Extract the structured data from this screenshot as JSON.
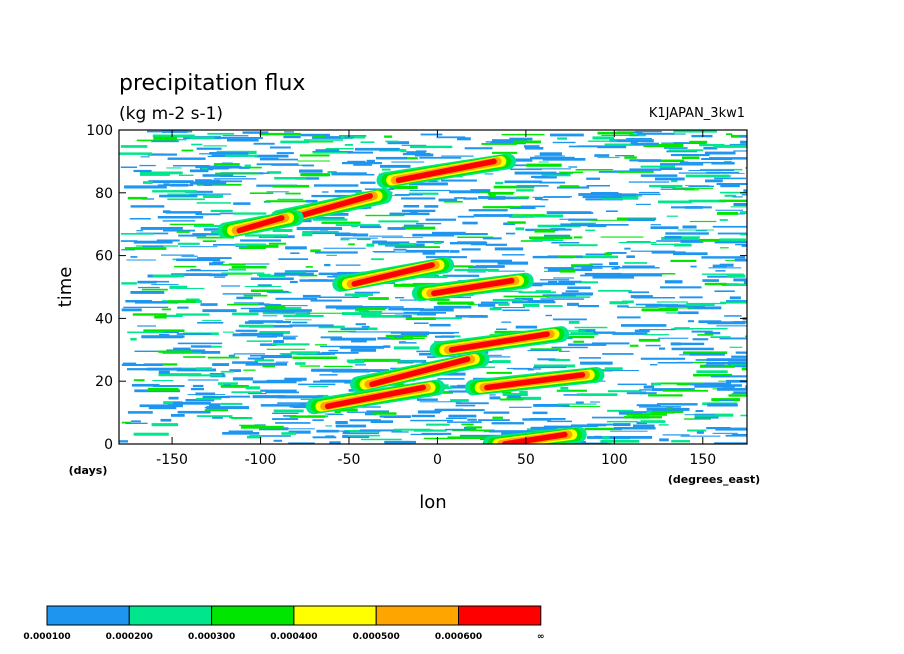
{
  "chart_data": {
    "type": "heatmap",
    "title": "precipitation flux",
    "subtitle": "(kg m-2 s-1)",
    "annotation": "K1JAPAN_3kw1",
    "xlabel": "lon",
    "x_unit": "(degrees_east)",
    "ylabel": "time",
    "y_unit": "(days)",
    "xlim": [
      -180,
      175
    ],
    "ylim": [
      0,
      100
    ],
    "x_ticks": [
      -150,
      -100,
      -50,
      0,
      50,
      100,
      150
    ],
    "x_tick_labels": [
      "-150",
      "-100",
      "-50",
      "0",
      "50",
      "100",
      "150"
    ],
    "y_ticks": [
      0,
      20,
      40,
      60,
      80,
      100
    ],
    "y_tick_labels": [
      "0",
      "20",
      "40",
      "60",
      "80",
      "100"
    ],
    "grid": false,
    "legend_position": "bottom",
    "color_levels": [
      0.0001,
      0.0002,
      0.0003,
      0.0004,
      0.0005,
      0.0006
    ],
    "colorbar_labels": [
      "0.000100",
      "0.000200",
      "0.000300",
      "0.000400",
      "0.000500",
      "0.000600",
      "∞"
    ],
    "colorbar_colors": [
      "#1e96f0",
      "#00e68c",
      "#00e600",
      "#ffff00",
      "#ffa500",
      "#ff0000"
    ],
    "red_streaks": [
      {
        "x": [
          -80,
          -40
        ],
        "y": [
          72,
          79
        ]
      },
      {
        "x": [
          -45,
          -5
        ],
        "y": [
          51,
          57
        ]
      },
      {
        "x": [
          -35,
          15
        ],
        "y": [
          19,
          27
        ]
      },
      {
        "x": [
          -60,
          -10
        ],
        "y": [
          12,
          18
        ]
      },
      {
        "x": [
          0,
          40
        ],
        "y": [
          48,
          52
        ]
      },
      {
        "x": [
          10,
          60
        ],
        "y": [
          30,
          35
        ]
      },
      {
        "x": [
          30,
          80
        ],
        "y": [
          18,
          22
        ]
      },
      {
        "x": [
          -20,
          30
        ],
        "y": [
          84,
          90
        ]
      },
      {
        "x": [
          -110,
          -90
        ],
        "y": [
          68,
          72
        ]
      },
      {
        "x": [
          40,
          70
        ],
        "y": [
          0,
          3
        ]
      }
    ]
  }
}
